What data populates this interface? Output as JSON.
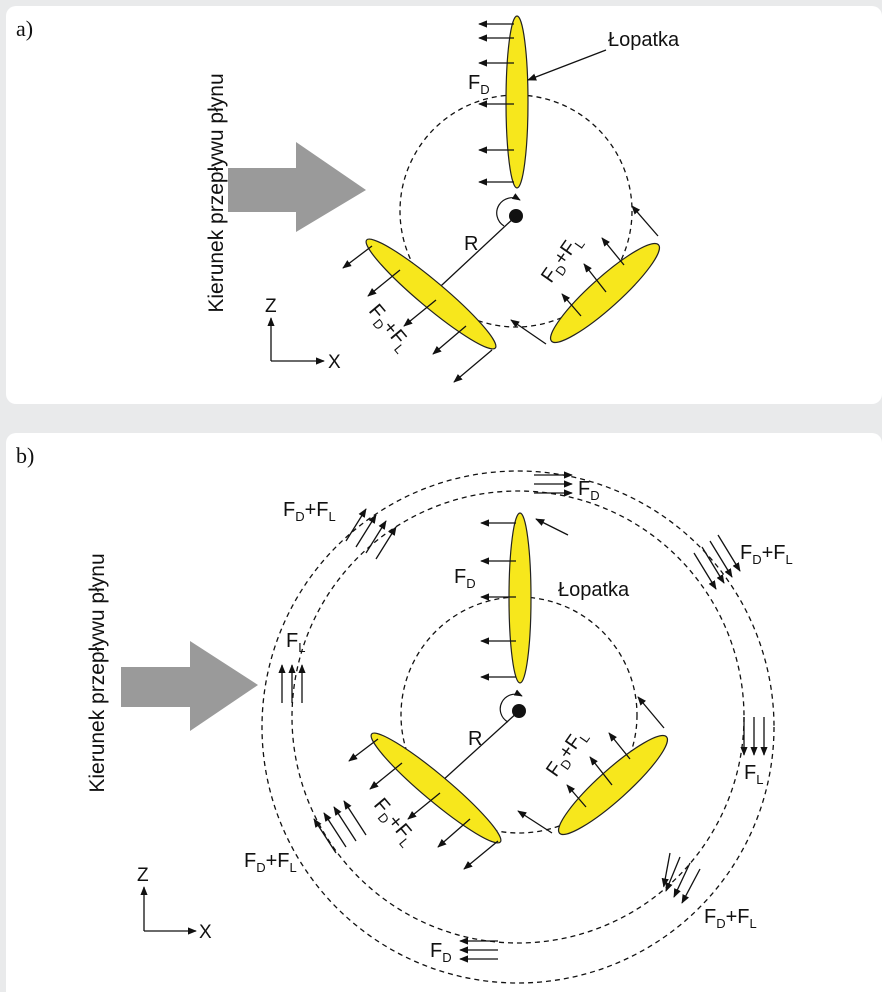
{
  "colors": {
    "blade_fill": "#f7e71c",
    "blade_stroke": "#222222",
    "flow_arrow": "#9a9a9a",
    "panel_bg": "#ffffff",
    "page_bg": "#e9eaeb"
  },
  "panel_a": {
    "label": "a)",
    "flow_label": "Kierunek przepływu płynu",
    "blade_label": "Łopatka",
    "radius_label": "R",
    "axis_z": "Z",
    "axis_x": "X",
    "force_top": {
      "main": "F",
      "sub": "D"
    },
    "force_right": {
      "f1": "F",
      "s1": "D",
      "plus": "+",
      "f2": "F",
      "s2": "L"
    },
    "force_left": {
      "f1": "F",
      "s1": "D",
      "plus": "+",
      "f2": "F",
      "s2": "L"
    }
  },
  "panel_b": {
    "label": "b)",
    "flow_label": "Kierunek przepływu płynu",
    "blade_label": "Łopatka",
    "radius_label": "R",
    "axis_z": "Z",
    "axis_x": "X",
    "inner_fd": {
      "main": "F",
      "sub": "D"
    },
    "inner_right": {
      "f1": "F",
      "s1": "D",
      "plus": "+",
      "f2": "F",
      "s2": "L"
    },
    "inner_left": {
      "f1": "F",
      "s1": "D",
      "plus": "+",
      "f2": "F",
      "s2": "L"
    },
    "outer_top": {
      "main": "F",
      "sub": "D"
    },
    "outer_top_left": {
      "f1": "F",
      "s1": "D",
      "plus": "+",
      "f2": "F",
      "s2": "L"
    },
    "outer_top_right": {
      "f1": "F",
      "s1": "D",
      "plus": "+",
      "f2": "F",
      "s2": "L"
    },
    "outer_left": {
      "main": "F",
      "sub": "L"
    },
    "outer_right": {
      "main": "F",
      "sub": "L"
    },
    "outer_bottom_left": {
      "f1": "F",
      "s1": "D",
      "plus": "+",
      "f2": "F",
      "s2": "L"
    },
    "outer_bottom_right": {
      "f1": "F",
      "s1": "D",
      "plus": "+",
      "f2": "F",
      "s2": "L"
    },
    "outer_bottom": {
      "main": "F",
      "sub": "D"
    }
  }
}
